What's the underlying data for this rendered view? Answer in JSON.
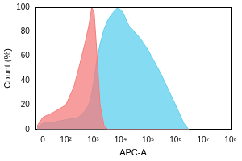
{
  "chart_data": {
    "type": "area",
    "x_label": "APC-A",
    "y_label": "Count (%)",
    "x": [
      -15,
      0,
      30,
      100,
      200,
      300,
      500,
      700,
      900,
      1100,
      1400,
      1800,
      2500,
      3500,
      5000,
      8000,
      12000,
      20000,
      50000,
      100000,
      300000,
      1000000,
      2000000,
      3000000
    ],
    "series": [
      {
        "color": "#f47c7c",
        "values": [
          3,
          10,
          14,
          20,
          35,
          50,
          70,
          85,
          100,
          95,
          60,
          20,
          3,
          0,
          0,
          0,
          0,
          0,
          0,
          0,
          0,
          0,
          0,
          0
        ]
      },
      {
        "color": "#5ccfee",
        "values": [
          2,
          5,
          6,
          8,
          9,
          10,
          15,
          20,
          30,
          42,
          58,
          70,
          82,
          90,
          95,
          100,
          96,
          85,
          75,
          65,
          45,
          20,
          5,
          0
        ]
      }
    ],
    "log": "x",
    "xlim": [
      -20,
      100000000
    ],
    "xticks": [
      0,
      {
        "value": 100,
        "label": "10²"
      },
      {
        "value": 1000,
        "label": "10³"
      },
      {
        "value": 10000,
        "label": "10⁴"
      },
      {
        "value": 100000,
        "label": "10⁵"
      },
      {
        "value": 1000000,
        "label": "10⁶"
      },
      {
        "value": 10000000,
        "label": "10⁷"
      },
      {
        "value": 100000000,
        "label": "10⁸"
      }
    ],
    "ylim": [
      0,
      100
    ],
    "yticks": [
      0,
      20,
      40,
      60,
      80,
      100
    ],
    "grid": false
  }
}
